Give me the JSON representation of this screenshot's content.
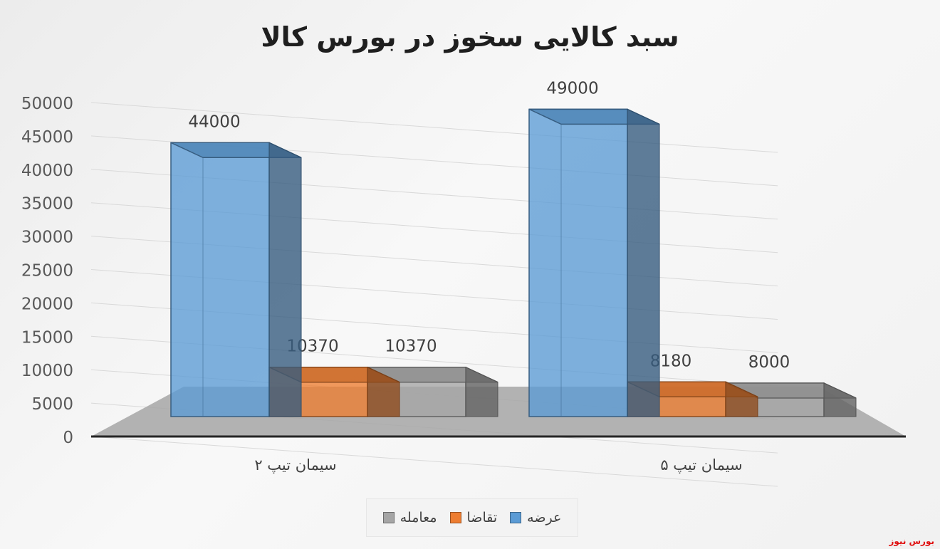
{
  "colors": {
    "supply": "#5b9bd5",
    "demand": "#ed7d31",
    "trade": "#a5a5a5",
    "watermark": "#e01010"
  },
  "watermark": "بورس نیوز",
  "chart_data": {
    "type": "bar",
    "title": "سبد کالایی سخوز در بورس کالا",
    "xlabel": "",
    "ylabel": "",
    "ylim": [
      0,
      50000
    ],
    "yticks": [
      0,
      5000,
      10000,
      15000,
      20000,
      25000,
      30000,
      35000,
      40000,
      45000,
      50000
    ],
    "categories": [
      "سیمان تیپ ۲",
      "سیمان تیپ ۵"
    ],
    "series": [
      {
        "name": "عرضه",
        "values": [
          44000,
          49000
        ],
        "color": "#5b9bd5"
      },
      {
        "name": "تقاضا",
        "values": [
          10370,
          8180
        ],
        "color": "#ed7d31"
      },
      {
        "name": "معامله",
        "values": [
          10370,
          8000
        ],
        "color": "#a5a5a5"
      }
    ],
    "grid": true,
    "legend_position": "bottom",
    "style": "3d-clustered-column"
  }
}
